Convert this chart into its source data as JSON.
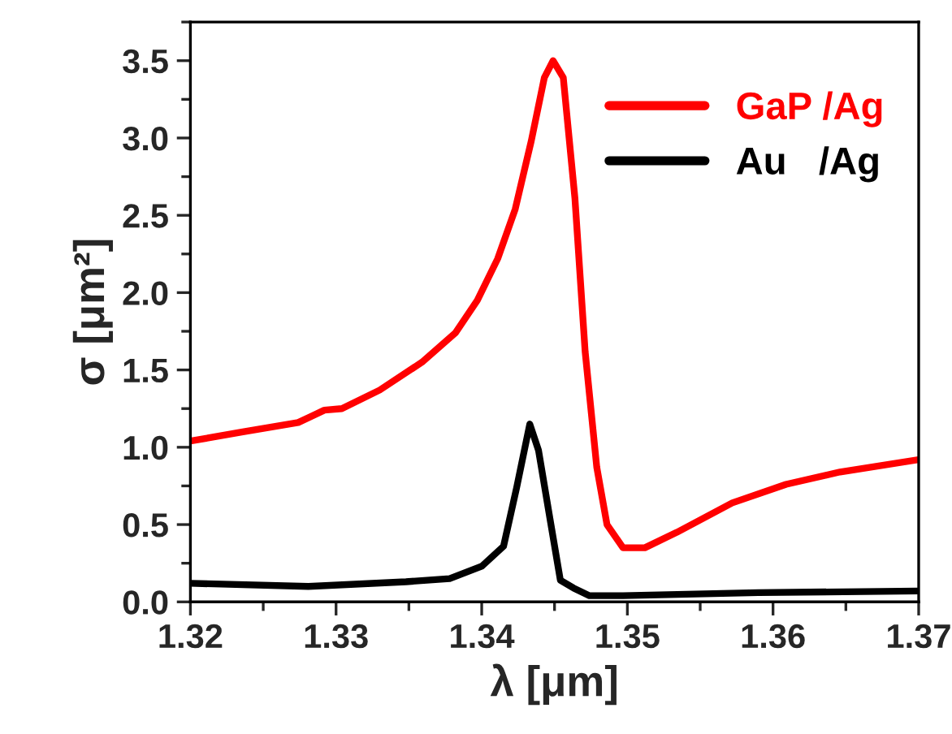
{
  "chart_data": {
    "type": "line",
    "xlabel": "λ [μm]",
    "ylabel": "σ [μm²]",
    "xlim": [
      1.32,
      1.37
    ],
    "xticks": [
      1.32,
      1.33,
      1.34,
      1.35,
      1.36,
      1.37
    ],
    "ylim": [
      0,
      3.75
    ],
    "yticks": [
      {
        "value": 0,
        "label": "0.0"
      },
      0.5,
      {
        "value": 1,
        "label": "1.0"
      },
      1.5,
      {
        "value": 2,
        "label": "2.0"
      },
      2.5,
      {
        "value": 3,
        "label": "3.0"
      },
      3.5
    ],
    "grid": false,
    "legend": "top right",
    "line_style": "solid",
    "marker": "none",
    "series": [
      {
        "name": "GaP /Ag",
        "color": "#ff0000",
        "x": [
          1.32,
          1.3236,
          1.3274,
          1.3292,
          1.3304,
          1.333,
          1.3359,
          1.3382,
          1.3397,
          1.3411,
          1.3423,
          1.3434,
          1.3443,
          1.3449,
          1.3456,
          1.3464,
          1.3471,
          1.3479,
          1.3486,
          1.3497,
          1.3512,
          1.3534,
          1.3572,
          1.3609,
          1.3646,
          1.37
        ],
        "values": [
          1.04,
          1.1,
          1.16,
          1.24,
          1.25,
          1.37,
          1.55,
          1.74,
          1.95,
          2.22,
          2.54,
          2.98,
          3.39,
          3.5,
          3.39,
          2.61,
          1.62,
          0.87,
          0.5,
          0.35,
          0.35,
          0.45,
          0.64,
          0.76,
          0.84,
          0.92
        ]
      },
      {
        "name": "Au   /Ag",
        "color": "#000000",
        "x": [
          1.32,
          1.3281,
          1.3348,
          1.3378,
          1.34,
          1.3415,
          1.3424,
          1.3433,
          1.3439,
          1.3447,
          1.3454,
          1.3463,
          1.3474,
          1.3497,
          1.359,
          1.37
        ],
        "values": [
          0.12,
          0.1,
          0.13,
          0.15,
          0.23,
          0.36,
          0.74,
          1.15,
          0.98,
          0.53,
          0.14,
          0.09,
          0.04,
          0.04,
          0.06,
          0.07
        ]
      }
    ]
  }
}
